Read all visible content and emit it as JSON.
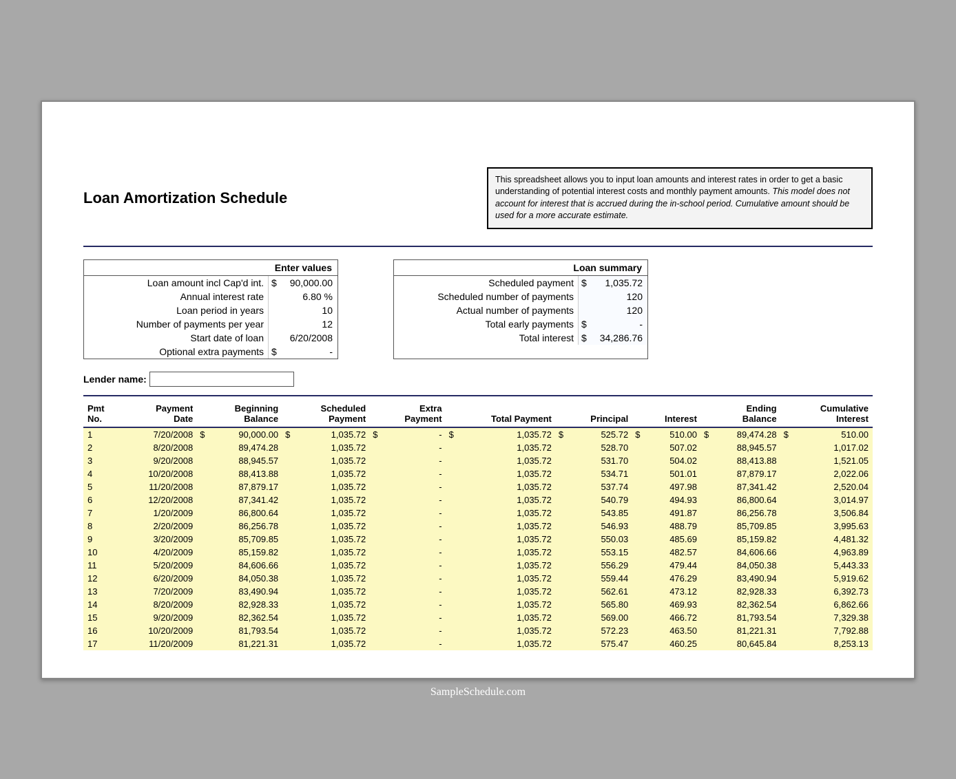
{
  "title": "Loan Amortization Schedule",
  "description": {
    "p1": "This spreadsheet allows you to input loan amounts and interest rates in order to get a basic understanding of potential interest costs and monthly payment amounts. ",
    "p2": "This model does not account for interest that is accrued during the in-school period. Cumulative amount should be used for a more accurate estimate."
  },
  "enter_values": {
    "header": "Enter values",
    "rows": [
      {
        "label": "Loan amount incl Cap'd int.",
        "value": "90,000.00",
        "cur": "$"
      },
      {
        "label": "Annual interest rate",
        "value": "6.80  %"
      },
      {
        "label": "Loan period in years",
        "value": "10"
      },
      {
        "label": "Number of payments per year",
        "value": "12"
      },
      {
        "label": "Start date of loan",
        "value": "6/20/2008"
      },
      {
        "label": "Optional extra payments",
        "value": "-",
        "cur": "$"
      }
    ]
  },
  "loan_summary": {
    "header": "Loan summary",
    "rows": [
      {
        "label": "Scheduled payment",
        "value": "1,035.72",
        "cur": "$"
      },
      {
        "label": "Scheduled number of payments",
        "value": "120"
      },
      {
        "label": "Actual number of payments",
        "value": "120"
      },
      {
        "label": "Total early payments",
        "value": "-",
        "cur": "$"
      },
      {
        "label": "Total interest",
        "value": "34,286.76",
        "cur": "$"
      }
    ]
  },
  "lender_name_label": "Lender name:",
  "columns": [
    "Pmt\nNo.",
    "Payment\nDate",
    "Beginning\nBalance",
    "Scheduled\nPayment",
    "Extra\nPayment",
    "Total Payment",
    "Principal",
    "Interest",
    "Ending\nBalance",
    "Cumulative\nInterest"
  ],
  "rows": [
    {
      "no": "1",
      "date": "7/20/2008",
      "beg": "90,000.00",
      "sched": "1,035.72",
      "extra": "-",
      "total": "1,035.72",
      "prin": "525.72",
      "int": "510.00",
      "end": "89,474.28",
      "cum": "510.00",
      "first": true
    },
    {
      "no": "2",
      "date": "8/20/2008",
      "beg": "89,474.28",
      "sched": "1,035.72",
      "extra": "-",
      "total": "1,035.72",
      "prin": "528.70",
      "int": "507.02",
      "end": "88,945.57",
      "cum": "1,017.02"
    },
    {
      "no": "3",
      "date": "9/20/2008",
      "beg": "88,945.57",
      "sched": "1,035.72",
      "extra": "-",
      "total": "1,035.72",
      "prin": "531.70",
      "int": "504.02",
      "end": "88,413.88",
      "cum": "1,521.05"
    },
    {
      "no": "4",
      "date": "10/20/2008",
      "beg": "88,413.88",
      "sched": "1,035.72",
      "extra": "-",
      "total": "1,035.72",
      "prin": "534.71",
      "int": "501.01",
      "end": "87,879.17",
      "cum": "2,022.06"
    },
    {
      "no": "5",
      "date": "11/20/2008",
      "beg": "87,879.17",
      "sched": "1,035.72",
      "extra": "-",
      "total": "1,035.72",
      "prin": "537.74",
      "int": "497.98",
      "end": "87,341.42",
      "cum": "2,520.04"
    },
    {
      "no": "6",
      "date": "12/20/2008",
      "beg": "87,341.42",
      "sched": "1,035.72",
      "extra": "-",
      "total": "1,035.72",
      "prin": "540.79",
      "int": "494.93",
      "end": "86,800.64",
      "cum": "3,014.97"
    },
    {
      "no": "7",
      "date": "1/20/2009",
      "beg": "86,800.64",
      "sched": "1,035.72",
      "extra": "-",
      "total": "1,035.72",
      "prin": "543.85",
      "int": "491.87",
      "end": "86,256.78",
      "cum": "3,506.84"
    },
    {
      "no": "8",
      "date": "2/20/2009",
      "beg": "86,256.78",
      "sched": "1,035.72",
      "extra": "-",
      "total": "1,035.72",
      "prin": "546.93",
      "int": "488.79",
      "end": "85,709.85",
      "cum": "3,995.63"
    },
    {
      "no": "9",
      "date": "3/20/2009",
      "beg": "85,709.85",
      "sched": "1,035.72",
      "extra": "-",
      "total": "1,035.72",
      "prin": "550.03",
      "int": "485.69",
      "end": "85,159.82",
      "cum": "4,481.32"
    },
    {
      "no": "10",
      "date": "4/20/2009",
      "beg": "85,159.82",
      "sched": "1,035.72",
      "extra": "-",
      "total": "1,035.72",
      "prin": "553.15",
      "int": "482.57",
      "end": "84,606.66",
      "cum": "4,963.89"
    },
    {
      "no": "11",
      "date": "5/20/2009",
      "beg": "84,606.66",
      "sched": "1,035.72",
      "extra": "-",
      "total": "1,035.72",
      "prin": "556.29",
      "int": "479.44",
      "end": "84,050.38",
      "cum": "5,443.33"
    },
    {
      "no": "12",
      "date": "6/20/2009",
      "beg": "84,050.38",
      "sched": "1,035.72",
      "extra": "-",
      "total": "1,035.72",
      "prin": "559.44",
      "int": "476.29",
      "end": "83,490.94",
      "cum": "5,919.62"
    },
    {
      "no": "13",
      "date": "7/20/2009",
      "beg": "83,490.94",
      "sched": "1,035.72",
      "extra": "-",
      "total": "1,035.72",
      "prin": "562.61",
      "int": "473.12",
      "end": "82,928.33",
      "cum": "6,392.73"
    },
    {
      "no": "14",
      "date": "8/20/2009",
      "beg": "82,928.33",
      "sched": "1,035.72",
      "extra": "-",
      "total": "1,035.72",
      "prin": "565.80",
      "int": "469.93",
      "end": "82,362.54",
      "cum": "6,862.66"
    },
    {
      "no": "15",
      "date": "9/20/2009",
      "beg": "82,362.54",
      "sched": "1,035.72",
      "extra": "-",
      "total": "1,035.72",
      "prin": "569.00",
      "int": "466.72",
      "end": "81,793.54",
      "cum": "7,329.38"
    },
    {
      "no": "16",
      "date": "10/20/2009",
      "beg": "81,793.54",
      "sched": "1,035.72",
      "extra": "-",
      "total": "1,035.72",
      "prin": "572.23",
      "int": "463.50",
      "end": "81,221.31",
      "cum": "7,792.88"
    },
    {
      "no": "17",
      "date": "11/20/2009",
      "beg": "81,221.31",
      "sched": "1,035.72",
      "extra": "-",
      "total": "1,035.72",
      "prin": "575.47",
      "int": "460.25",
      "end": "80,645.84",
      "cum": "8,253.13"
    }
  ],
  "footer": "SampleSchedule.com",
  "colors": {
    "rule": "#262a63",
    "row_bg": "#fcf9c2",
    "page_bg": "#a8a8a8",
    "desc_bg": "#f3f3f3"
  }
}
